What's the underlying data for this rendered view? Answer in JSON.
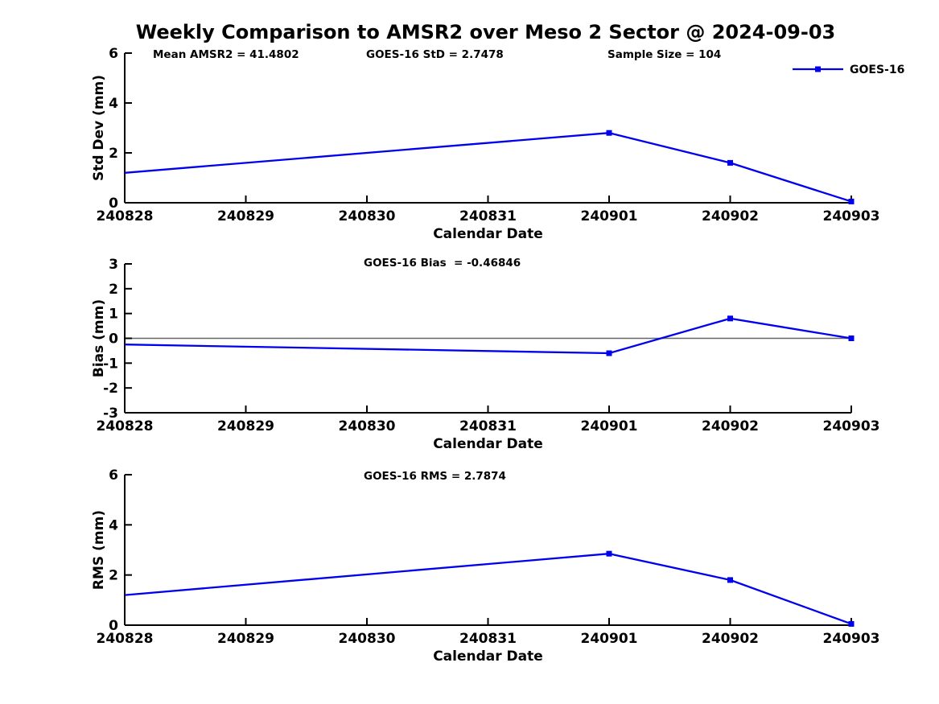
{
  "page": {
    "title": "Weekly Comparison to AMSR2 over Meso 2 Sector @ 2024-09-03"
  },
  "colors": {
    "series": "#0000EE",
    "axis": "#000000",
    "text": "#000000",
    "zero_line": "#666666"
  },
  "legend": {
    "label": "GOES-16"
  },
  "chart_data": [
    {
      "type": "line",
      "name": "std-dev",
      "ylabel": "Std Dev (mm)",
      "xlabel": "Calendar Date",
      "categories": [
        "240828",
        "240829",
        "240830",
        "240831",
        "240901",
        "240902",
        "240903"
      ],
      "ylim": [
        0,
        6
      ],
      "yticks": [
        0,
        2,
        4,
        6
      ],
      "grid": false,
      "zero_line": false,
      "legend_position": "top-right",
      "annotations": [
        "Mean AMSR2 = 41.4802",
        "GOES-16 StD = 2.7478",
        "Sample Size = 104"
      ],
      "series": [
        {
          "name": "GOES-16",
          "x": [
            "240828",
            "240901",
            "240902",
            "240903"
          ],
          "values": [
            1.2,
            2.8,
            1.6,
            0.05
          ]
        }
      ]
    },
    {
      "type": "line",
      "name": "bias",
      "ylabel": "Bias (mm)",
      "xlabel": "Calendar Date",
      "categories": [
        "240828",
        "240829",
        "240830",
        "240831",
        "240901",
        "240902",
        "240903"
      ],
      "ylim": [
        -3,
        3
      ],
      "yticks": [
        -3,
        -2,
        -1,
        0,
        1,
        2,
        3
      ],
      "grid": false,
      "zero_line": true,
      "legend_position": "none",
      "annotations": [
        "GOES-16 Bias  = -0.46846"
      ],
      "series": [
        {
          "name": "GOES-16",
          "x": [
            "240828",
            "240901",
            "240902",
            "240903"
          ],
          "values": [
            -0.25,
            -0.6,
            0.8,
            0.0
          ]
        }
      ]
    },
    {
      "type": "line",
      "name": "rms",
      "ylabel": "RMS (mm)",
      "xlabel": "Calendar Date",
      "categories": [
        "240828",
        "240829",
        "240830",
        "240831",
        "240901",
        "240902",
        "240903"
      ],
      "ylim": [
        0,
        6
      ],
      "yticks": [
        0,
        2,
        4,
        6
      ],
      "grid": false,
      "zero_line": false,
      "legend_position": "none",
      "annotations": [
        "GOES-16 RMS = 2.7874"
      ],
      "series": [
        {
          "name": "GOES-16",
          "x": [
            "240828",
            "240901",
            "240902",
            "240903"
          ],
          "values": [
            1.2,
            2.85,
            1.8,
            0.05
          ]
        }
      ]
    }
  ]
}
